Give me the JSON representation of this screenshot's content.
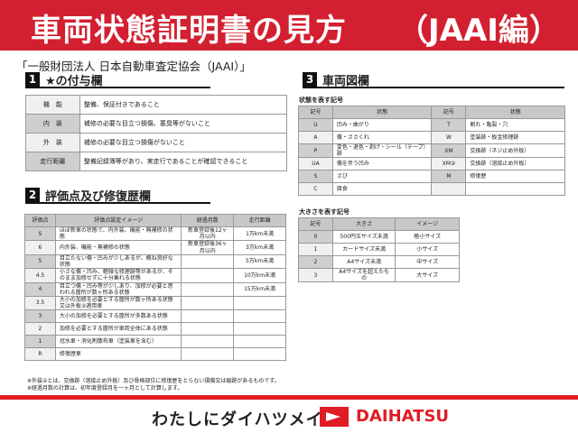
{
  "header": {
    "title": "車両状態証明書の見方",
    "title_suffix": "（JAAI編）",
    "organization": "「一般財団法人 日本自動車査定協会（JAAI）」"
  },
  "section1": {
    "number": "1",
    "title": "★の付与欄",
    "rows": [
      [
        "機　能",
        "整備、保証付きであること"
      ],
      [
        "内　装",
        "補修の必要な目立つ損傷、悪臭等がないこと"
      ],
      [
        "外　装",
        "補修の必要な目立つ損傷がないこと"
      ],
      [
        "走行距離",
        "整備記録簿等があり、実走行であることが確認できること"
      ]
    ]
  },
  "section2": {
    "number": "2",
    "title": "評価点及び修復歴欄",
    "headers": [
      "評価点",
      "評価点設定イメージ",
      "経過月数",
      "走行距離"
    ],
    "rows": [
      [
        "S",
        "ほぼ新車の状態で、内外装、機能・無補修の状態",
        "新車登録後12ヶ月以内",
        "1万km未満"
      ],
      [
        "6",
        "内外装、機能・無補修の状態",
        "新車登録後36ヶ月以内",
        "3万km未満"
      ],
      [
        "5",
        "目立たない傷・凹みが少しあるが、概ね良好な状態",
        "",
        "5万km未満"
      ],
      [
        "4.5",
        "小さな傷・凹み、軽微な修理跡等があるが、そのまま加修せずに十分乗れる状態",
        "",
        "10万km未満"
      ],
      [
        "4",
        "目立つ傷・凹み等が少しあり、加修が必要と思われる箇所が数ヶ所ある状態",
        "",
        "15万km未満"
      ],
      [
        "3.5",
        "大小の加修を必要とする箇所が数ヶ所ある状態又は外板②適用車",
        "",
        ""
      ],
      [
        "3",
        "大小の加修を必要とする箇所が多数ある状態",
        "",
        ""
      ],
      [
        "2",
        "加修を必要とする箇所が車両全体にある状態",
        "",
        ""
      ],
      [
        "1",
        "冠水車・消化剤散布車（塗装車を含む）",
        "",
        ""
      ],
      [
        "R",
        "修復歴車",
        "",
        ""
      ]
    ]
  },
  "section3": {
    "number": "3",
    "title": "車両図欄",
    "condition_label": "状態を表す記号",
    "condition_headers": [
      "記号",
      "状態",
      "記号",
      "状態"
    ],
    "condition_rows": [
      [
        "U",
        "凹み・曲がり",
        "T",
        "割れ・亀裂・穴"
      ],
      [
        "A",
        "傷・ささくれ",
        "W",
        "塗装跡・板金修理跡"
      ],
      [
        "P",
        "変色・退色・剥げ・シール（テープ）跡",
        "XM",
        "交換跡（ネジ止め外板）"
      ],
      [
        "UA",
        "傷を伴う凹み",
        "XM②",
        "交換跡（溶接止め外板）"
      ],
      [
        "S",
        "さび",
        "M",
        "修復歴"
      ],
      [
        "C",
        "腐食",
        "",
        ""
      ]
    ],
    "size_label": "大きさを表す記号",
    "size_headers": [
      "記号",
      "大きさ",
      "イメージ"
    ],
    "size_rows": [
      [
        "0",
        "500円玉サイズ未満",
        "極小サイズ"
      ],
      [
        "1",
        "カードサイズ未満",
        "小サイズ"
      ],
      [
        "2",
        "A4サイズ未満",
        "中サイズ"
      ],
      [
        "3",
        "A4サイズを超えたもの",
        "大サイズ"
      ]
    ]
  },
  "notes": [
    "※外装②とは、交換跡（溶接止め外板）及び骨格部位に修復歴をとらない損傷又は痕跡があるものです。",
    "※経過月数の計算は、初年度登録月を一ヶ月として計算します。"
  ],
  "footer": {
    "slogan": "わたしにダイハツメイ。",
    "brand": "DAIHATSU"
  },
  "colors": {
    "banner": "#d32030",
    "brand_red": "#e01c24"
  }
}
